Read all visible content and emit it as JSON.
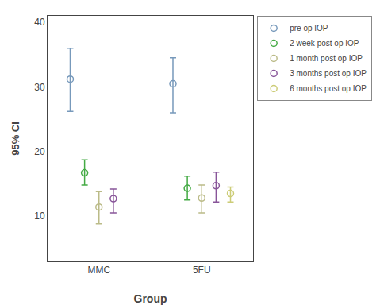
{
  "chart_data": {
    "type": "errorbar",
    "categories": [
      "MMC",
      "5FU"
    ],
    "xlabel": "Group",
    "ylabel": "95% CI",
    "ylim": [
      3,
      41
    ],
    "yticks": [
      10,
      20,
      30,
      40
    ],
    "grid": false,
    "legend": "right",
    "marker": "circle-open",
    "series": [
      {
        "name": "pre op IOP",
        "color": "#7799bb",
        "values": [
          31.2,
          30.5
        ],
        "lower": [
          26.2,
          26.0
        ],
        "upper": [
          36.0,
          34.5
        ]
      },
      {
        "name": "2 week post op IOP",
        "color": "#44aa44",
        "values": [
          16.7,
          14.3
        ],
        "lower": [
          14.8,
          12.5
        ],
        "upper": [
          18.7,
          16.2
        ]
      },
      {
        "name": "1 month post op IOP",
        "color": "#bbbb88",
        "values": [
          11.4,
          12.8
        ],
        "lower": [
          8.8,
          10.5
        ],
        "upper": [
          13.8,
          14.8
        ]
      },
      {
        "name": "3 months post op IOP",
        "color": "#885599",
        "values": [
          12.7,
          14.7
        ],
        "lower": [
          10.5,
          12.2
        ],
        "upper": [
          14.2,
          16.8
        ]
      },
      {
        "name": "6 months post op IOP",
        "color": "#cccc77",
        "values": [
          null,
          13.5
        ],
        "lower": [
          null,
          12.2
        ],
        "upper": [
          null,
          14.5
        ]
      }
    ]
  }
}
